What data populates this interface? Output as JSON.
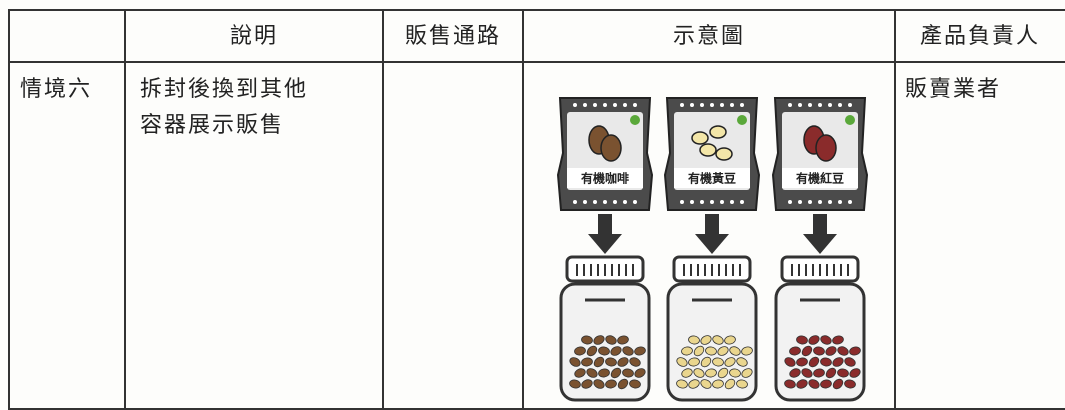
{
  "table": {
    "headers": [
      "說明",
      "販售通路",
      "示意圖",
      "產品負責人"
    ],
    "rows": [
      {
        "scenario": "情境六",
        "description": [
          "拆封後換到其他",
          "容器展示販售"
        ],
        "illustration": [
          "有機咖啡",
          "有機黃豆",
          "有機紅豆"
        ],
        "owner": "販賣業者"
      }
    ]
  }
}
